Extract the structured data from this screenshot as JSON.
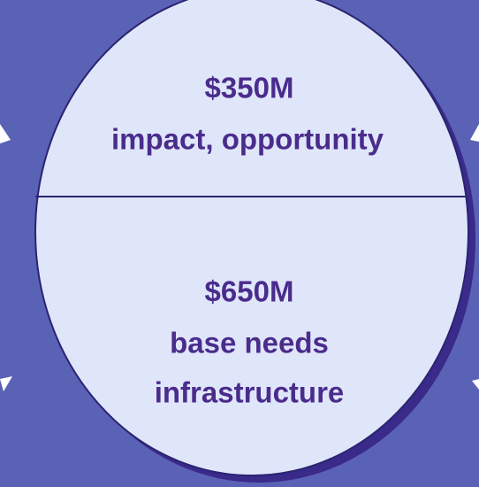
{
  "top": {
    "amount": "$350M",
    "label": "impact, opportunity"
  },
  "bottom": {
    "amount": "$650M",
    "lines": [
      "base needs",
      "infrastructure"
    ]
  }
}
